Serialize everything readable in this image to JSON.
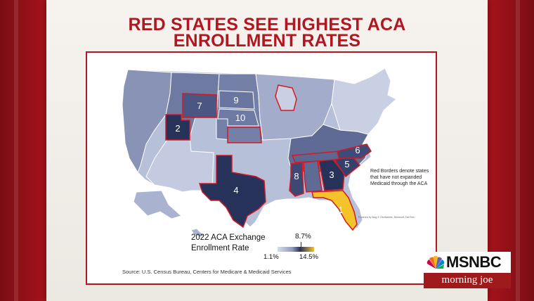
{
  "headline": {
    "line1": "RED STATES SEE HIGHEST ACA",
    "line2": "ENROLLMENT RATES"
  },
  "map": {
    "rank_labels": [
      {
        "state": "FL",
        "rank": "1"
      },
      {
        "state": "UT",
        "rank": "2"
      },
      {
        "state": "GA",
        "rank": "3"
      },
      {
        "state": "TX",
        "rank": "4"
      },
      {
        "state": "SC",
        "rank": "5"
      },
      {
        "state": "NC",
        "rank": "6"
      },
      {
        "state": "WY",
        "rank": "7"
      },
      {
        "state": "MS",
        "rank": "8"
      },
      {
        "state": "SD",
        "rank": "9"
      },
      {
        "state": "NE",
        "rank": "10"
      }
    ],
    "note": "Red Borders denote states that have not expanded Medicaid through the ACA",
    "credit": "Powered by Bing © GeoNames, Microsoft, TomTom",
    "legend": {
      "title_line1": "2022 ACA Exchange",
      "title_line2": "Enrollment Rate",
      "min": "1.1%",
      "mid": "8.7%",
      "max": "14.5%"
    },
    "source": "Source: U.S. Census Bureau, Centers for Medicare & Medicaid Services",
    "colors": {
      "highest": "#f4c22a",
      "high": "#27325a",
      "mid": "#5d6a92",
      "low": "#a9b3cf",
      "lowest": "#d6dceb",
      "border_highlight": "#d11a24"
    }
  },
  "logo": {
    "network": "MSNBC",
    "show": "morning joe"
  }
}
